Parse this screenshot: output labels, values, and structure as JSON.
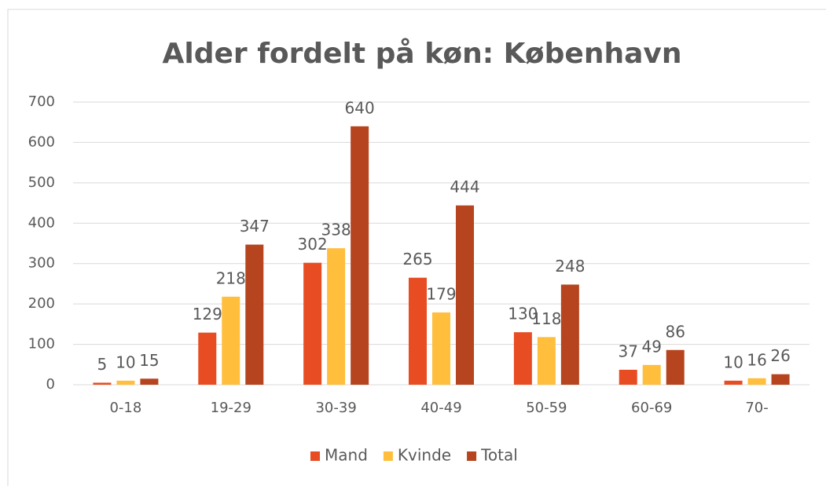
{
  "chart_data": {
    "type": "bar",
    "title": "Alder fordelt på køn: København",
    "categories": [
      "0-18",
      "19-29",
      "30-39",
      "40-49",
      "50-59",
      "60-69",
      "70-"
    ],
    "series": [
      {
        "name": "Mand",
        "color": "#e84c22",
        "values": [
          5,
          129,
          302,
          265,
          130,
          37,
          10
        ]
      },
      {
        "name": "Kvinde",
        "color": "#ffbe3c",
        "values": [
          10,
          218,
          338,
          179,
          118,
          49,
          16
        ]
      },
      {
        "name": "Total",
        "color": "#b5441f",
        "values": [
          15,
          347,
          640,
          444,
          248,
          86,
          26
        ]
      }
    ],
    "ylim": [
      0,
      700
    ],
    "yticks": [
      0,
      100,
      200,
      300,
      400,
      500,
      600,
      700
    ],
    "grid": true,
    "legend": "bottom"
  }
}
